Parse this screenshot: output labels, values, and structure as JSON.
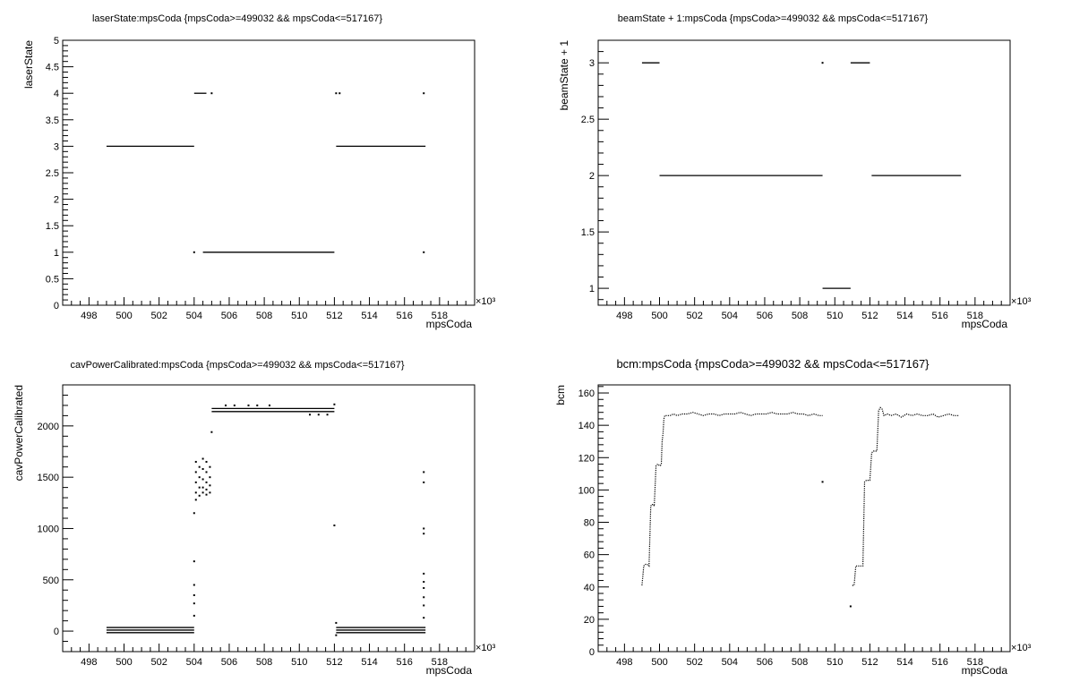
{
  "chart_data": [
    {
      "type": "scatter",
      "title": "laserState:mpsCoda {mpsCoda>=499032 && mpsCoda<=517167}",
      "xlabel": "mpsCoda",
      "ylabel": "laserState",
      "x_exponent": "×10³",
      "xlim": [
        496.5,
        520
      ],
      "ylim": [
        0,
        5
      ],
      "xticks": [
        498,
        500,
        502,
        504,
        506,
        508,
        510,
        512,
        514,
        516,
        518
      ],
      "yticks": [
        0,
        0.5,
        1,
        1.5,
        2,
        2.5,
        3,
        3.5,
        4,
        4.5,
        5
      ],
      "ytick_labels": [
        "0",
        "0.5",
        "1",
        "1.5",
        "2",
        "2.5",
        "3",
        "3.5",
        "4",
        "4.5",
        "5"
      ],
      "segments": [
        {
          "x0": 499.0,
          "x1": 504.0,
          "y": 3
        },
        {
          "x0": 504.0,
          "x1": 504.7,
          "y": 4
        },
        {
          "x0": 504.5,
          "x1": 512.0,
          "y": 1
        },
        {
          "x0": 512.1,
          "x1": 517.2,
          "y": 3
        }
      ],
      "points": [
        {
          "x": 504.0,
          "y": 1
        },
        {
          "x": 505.0,
          "y": 4
        },
        {
          "x": 512.1,
          "y": 4
        },
        {
          "x": 512.3,
          "y": 4
        },
        {
          "x": 517.1,
          "y": 4
        },
        {
          "x": 517.1,
          "y": 1
        }
      ]
    },
    {
      "type": "scatter",
      "title": "beamState + 1:mpsCoda {mpsCoda>=499032 && mpsCoda<=517167}",
      "xlabel": "mpsCoda",
      "ylabel": "beamState + 1",
      "x_exponent": "×10³",
      "xlim": [
        496.5,
        520
      ],
      "ylim": [
        0.85,
        3.2
      ],
      "xticks": [
        498,
        500,
        502,
        504,
        506,
        508,
        510,
        512,
        514,
        516,
        518
      ],
      "yticks": [
        1,
        1.5,
        2,
        2.5,
        3
      ],
      "ytick_labels": [
        "1",
        "1.5",
        "2",
        "2.5",
        "3"
      ],
      "segments": [
        {
          "x0": 499.0,
          "x1": 500.0,
          "y": 3
        },
        {
          "x0": 500.0,
          "x1": 509.3,
          "y": 2
        },
        {
          "x0": 509.3,
          "x1": 510.9,
          "y": 1
        },
        {
          "x0": 510.9,
          "x1": 512.0,
          "y": 3
        },
        {
          "x0": 512.1,
          "x1": 517.2,
          "y": 2
        }
      ],
      "points": [
        {
          "x": 509.3,
          "y": 3
        }
      ]
    },
    {
      "type": "scatter",
      "title": "cavPowerCalibrated:mpsCoda {mpsCoda>=499032 && mpsCoda<=517167}",
      "xlabel": "mpsCoda",
      "ylabel": "cavPowerCalibrated",
      "x_exponent": "×10³",
      "xlim": [
        496.5,
        520
      ],
      "ylim": [
        -200,
        2400
      ],
      "xticks": [
        498,
        500,
        502,
        504,
        506,
        508,
        510,
        512,
        514,
        516,
        518
      ],
      "yticks": [
        0,
        500,
        1000,
        1500,
        2000
      ],
      "ytick_labels": [
        "0",
        "500",
        "1000",
        "1500",
        "2000"
      ],
      "segments": [
        {
          "x0": 499.0,
          "x1": 504.0,
          "y": 35
        },
        {
          "x0": 499.0,
          "x1": 504.0,
          "y": 10
        },
        {
          "x0": 499.0,
          "x1": 504.0,
          "y": -15
        },
        {
          "x0": 505.0,
          "x1": 512.0,
          "y": 2170
        },
        {
          "x0": 505.0,
          "x1": 512.0,
          "y": 2140
        },
        {
          "x0": 512.1,
          "x1": 517.2,
          "y": 35
        },
        {
          "x0": 512.1,
          "x1": 517.2,
          "y": 10
        },
        {
          "x0": 512.1,
          "x1": 517.2,
          "y": -15
        }
      ],
      "points": [
        {
          "x": 504.0,
          "y": 1150
        },
        {
          "x": 504.0,
          "y": 680
        },
        {
          "x": 504.0,
          "y": 450
        },
        {
          "x": 504.0,
          "y": 350
        },
        {
          "x": 504.0,
          "y": 270
        },
        {
          "x": 504.0,
          "y": 150
        },
        {
          "x": 504.1,
          "y": 1650
        },
        {
          "x": 504.1,
          "y": 1550
        },
        {
          "x": 504.1,
          "y": 1450
        },
        {
          "x": 504.1,
          "y": 1350
        },
        {
          "x": 504.1,
          "y": 1280
        },
        {
          "x": 504.3,
          "y": 1600
        },
        {
          "x": 504.3,
          "y": 1500
        },
        {
          "x": 504.3,
          "y": 1400
        },
        {
          "x": 504.3,
          "y": 1320
        },
        {
          "x": 504.5,
          "y": 1680
        },
        {
          "x": 504.5,
          "y": 1580
        },
        {
          "x": 504.5,
          "y": 1480
        },
        {
          "x": 504.5,
          "y": 1400
        },
        {
          "x": 504.5,
          "y": 1350
        },
        {
          "x": 504.7,
          "y": 1650
        },
        {
          "x": 504.7,
          "y": 1550
        },
        {
          "x": 504.7,
          "y": 1450
        },
        {
          "x": 504.7,
          "y": 1380
        },
        {
          "x": 504.7,
          "y": 1330
        },
        {
          "x": 504.9,
          "y": 1600
        },
        {
          "x": 504.9,
          "y": 1500
        },
        {
          "x": 504.9,
          "y": 1420
        },
        {
          "x": 504.9,
          "y": 1350
        },
        {
          "x": 505.0,
          "y": 1940
        },
        {
          "x": 505.8,
          "y": 2200
        },
        {
          "x": 506.3,
          "y": 2200
        },
        {
          "x": 507.1,
          "y": 2200
        },
        {
          "x": 507.6,
          "y": 2200
        },
        {
          "x": 508.3,
          "y": 2200
        },
        {
          "x": 510.6,
          "y": 2110
        },
        {
          "x": 511.1,
          "y": 2110
        },
        {
          "x": 511.6,
          "y": 2110
        },
        {
          "x": 512.0,
          "y": 2210
        },
        {
          "x": 512.0,
          "y": 1030
        },
        {
          "x": 512.1,
          "y": 80
        },
        {
          "x": 512.1,
          "y": -40
        },
        {
          "x": 517.1,
          "y": 1550
        },
        {
          "x": 517.1,
          "y": 1450
        },
        {
          "x": 517.1,
          "y": 1000
        },
        {
          "x": 517.1,
          "y": 950
        },
        {
          "x": 517.1,
          "y": 560
        },
        {
          "x": 517.1,
          "y": 480
        },
        {
          "x": 517.1,
          "y": 420
        },
        {
          "x": 517.1,
          "y": 330
        },
        {
          "x": 517.1,
          "y": 250
        },
        {
          "x": 517.1,
          "y": 130
        }
      ]
    },
    {
      "type": "scatter",
      "title": "bcm:mpsCoda {mpsCoda>=499032 && mpsCoda<=517167}",
      "xlabel": "mpsCoda",
      "ylabel": "bcm",
      "x_exponent": "×10³",
      "xlim": [
        496.5,
        520
      ],
      "ylim": [
        0,
        165
      ],
      "xticks": [
        498,
        500,
        502,
        504,
        506,
        508,
        510,
        512,
        514,
        516,
        518
      ],
      "yticks": [
        0,
        20,
        40,
        60,
        80,
        100,
        120,
        140,
        160
      ],
      "ytick_labels": [
        "0",
        "20",
        "40",
        "60",
        "80",
        "100",
        "120",
        "140",
        "160"
      ],
      "series": [
        {
          "x": [
            499.0,
            499.1,
            499.2,
            499.3,
            499.4,
            499.5,
            499.55,
            499.6,
            499.65,
            499.7,
            499.8,
            499.9,
            500.0,
            500.05,
            500.1,
            500.15,
            500.2,
            500.25,
            500.3,
            500.4,
            500.6,
            500.8,
            501.0,
            501.3,
            501.6,
            501.9,
            502.2,
            502.5,
            502.8,
            503.1,
            503.4,
            503.7,
            504.0,
            504.3,
            504.6,
            504.9,
            505.2,
            505.5,
            505.8,
            506.1,
            506.4,
            506.7,
            507.0,
            507.3,
            507.6,
            507.9,
            508.2,
            508.5,
            508.8,
            509.1,
            509.3
          ],
          "y": [
            41,
            53,
            54,
            54,
            53,
            90,
            91,
            91,
            91,
            90,
            115,
            116,
            115,
            115,
            116,
            130,
            135,
            144,
            146,
            146,
            146,
            147,
            146,
            147,
            147,
            148,
            147,
            146,
            147,
            147,
            146,
            147,
            147,
            147,
            148,
            147,
            146,
            147,
            147,
            147,
            148,
            147,
            147,
            147,
            148,
            147,
            147,
            146,
            147,
            146,
            146
          ]
        },
        {
          "x": [
            511.0,
            511.1,
            511.2,
            511.3,
            511.4,
            511.5,
            511.6,
            511.7,
            511.8,
            511.9,
            512.0,
            512.1,
            512.2,
            512.3,
            512.4,
            512.5,
            512.6,
            512.7,
            512.8,
            513.0,
            513.2,
            513.5,
            513.8,
            514.1,
            514.4,
            514.7,
            515.0,
            515.3,
            515.6,
            515.9,
            516.2,
            516.5,
            516.8,
            517.1
          ],
          "y": [
            41,
            41,
            53,
            53,
            53,
            53,
            53,
            105,
            106,
            106,
            106,
            123,
            124,
            124,
            124,
            149,
            151,
            150,
            146,
            147,
            146,
            147,
            145,
            147,
            146,
            147,
            146,
            146,
            147,
            145,
            146,
            147,
            146,
            146
          ]
        }
      ],
      "points": [
        {
          "x": 509.3,
          "y": 105
        },
        {
          "x": 510.9,
          "y": 28
        }
      ]
    }
  ]
}
